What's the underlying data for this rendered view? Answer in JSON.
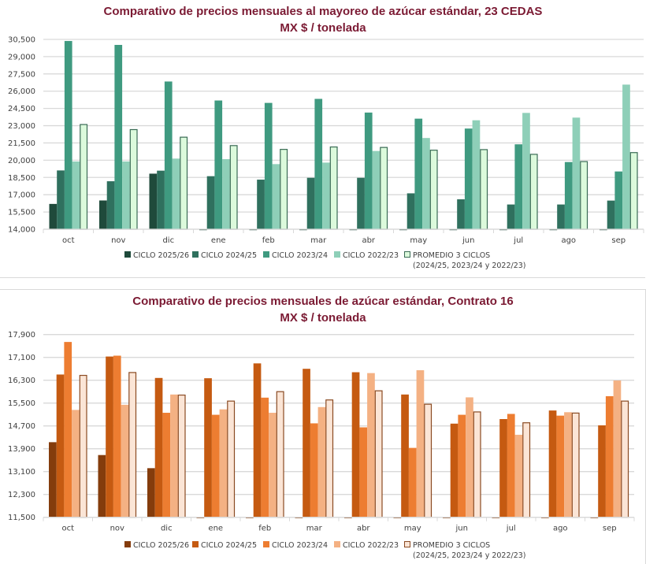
{
  "chart_data": [
    {
      "id": "cedas",
      "type": "bar",
      "title": "Comparativo de precios mensuales al mayoreo de azúcar estándar, 23 CEDAS",
      "subtitle": "MX $ / tonelada",
      "xlabel": "",
      "ylabel": "",
      "ylim": [
        14000,
        30500
      ],
      "yticks": [
        14000,
        15500,
        17000,
        18500,
        20000,
        21500,
        23000,
        24500,
        26000,
        27500,
        29000,
        30500
      ],
      "ytick_labels": [
        "14,000",
        "15,500",
        "17,000",
        "18,500",
        "20,000",
        "21,500",
        "23,000",
        "24,500",
        "26,000",
        "27,500",
        "29,000",
        "30,500"
      ],
      "grid": true,
      "legend_position": "bottom",
      "categories": [
        "oct",
        "nov",
        "dic",
        "ene",
        "feb",
        "mar",
        "abr",
        "may",
        "jun",
        "jul",
        "ago",
        "sep"
      ],
      "series": [
        {
          "name": "CICLO 2025/26",
          "color": "#1f4a3b",
          "border": "#1f4a3b",
          "values": [
            16200,
            16500,
            18830,
            null,
            null,
            null,
            null,
            null,
            null,
            null,
            null,
            null
          ]
        },
        {
          "name": "CICLO 2024/25",
          "color": "#2f705e",
          "border": "#2f705e",
          "values": [
            19110,
            18170,
            19090,
            18610,
            18310,
            18470,
            18470,
            17120,
            16600,
            16150,
            16150,
            16490
          ]
        },
        {
          "name": "CICLO 2023/24",
          "color": "#3f9a80",
          "border": "#3f9a80",
          "values": [
            30360,
            30020,
            26840,
            25190,
            24980,
            25330,
            24140,
            23610,
            22750,
            21380,
            19840,
            19020
          ]
        },
        {
          "name": "CICLO 2022/23",
          "color": "#8ecfb8",
          "border": "#8ecfb8",
          "values": [
            19890,
            19890,
            20140,
            20090,
            19660,
            19790,
            20800,
            21930,
            23470,
            24110,
            23700,
            26570
          ]
        },
        {
          "name": "PROMEDIO 3 CICLOS",
          "name_sub": "(2024/25, 2023/24 y 2022/23)",
          "color": "#dcfadc",
          "border": "#3a6b55",
          "values": [
            23100,
            22660,
            22000,
            21270,
            20940,
            21150,
            21110,
            20870,
            20920,
            20510,
            19880,
            20660
          ]
        }
      ]
    },
    {
      "id": "contrato16",
      "type": "bar",
      "title": "Comparativo de precios mensuales de azúcar estándar, Contrato 16",
      "subtitle": "MX $ / tonelada",
      "xlabel": "",
      "ylabel": "",
      "ylim": [
        11500,
        17900
      ],
      "yticks": [
        11500,
        12300,
        13100,
        13900,
        14700,
        15500,
        16300,
        17100,
        17900
      ],
      "ytick_labels": [
        "11,500",
        "12,300",
        "13,100",
        "13,900",
        "14,700",
        "15,500",
        "16,300",
        "17,100",
        "17,900"
      ],
      "grid": true,
      "legend_position": "bottom",
      "categories": [
        "oct",
        "nov",
        "dic",
        "ene",
        "feb",
        "mar",
        "abr",
        "may",
        "jun",
        "jul",
        "ago",
        "sep"
      ],
      "series": [
        {
          "name": "CICLO 2025/26",
          "color": "#843c0c",
          "border": "#843c0c",
          "values": [
            14130,
            13680,
            13220,
            null,
            null,
            null,
            null,
            null,
            null,
            null,
            null,
            null
          ]
        },
        {
          "name": "CICLO 2024/25",
          "color": "#c55a11",
          "border": "#c55a11",
          "values": [
            16500,
            17130,
            16380,
            16370,
            16890,
            16700,
            16580,
            15800,
            14780,
            14940,
            15240,
            14720
          ]
        },
        {
          "name": "CICLO 2023/24",
          "color": "#ed7d31",
          "border": "#ed7d31",
          "values": [
            17640,
            17160,
            15160,
            15090,
            15690,
            14790,
            14650,
            13930,
            15090,
            15120,
            15060,
            15740
          ]
        },
        {
          "name": "CICLO 2022/23",
          "color": "#f4b183",
          "border": "#f4b183",
          "values": [
            15260,
            15440,
            15800,
            15280,
            15160,
            15360,
            16550,
            16650,
            15700,
            14390,
            15180,
            16290
          ]
        },
        {
          "name": "PROMEDIO 3 CICLOS",
          "name_sub": "(2024/25, 2023/24 y 2022/23)",
          "color": "#fbe5d6",
          "border": "#8a4a22",
          "values": [
            16470,
            16570,
            15780,
            15570,
            15900,
            15610,
            15930,
            15460,
            15190,
            14810,
            15150,
            15570
          ]
        }
      ]
    }
  ]
}
